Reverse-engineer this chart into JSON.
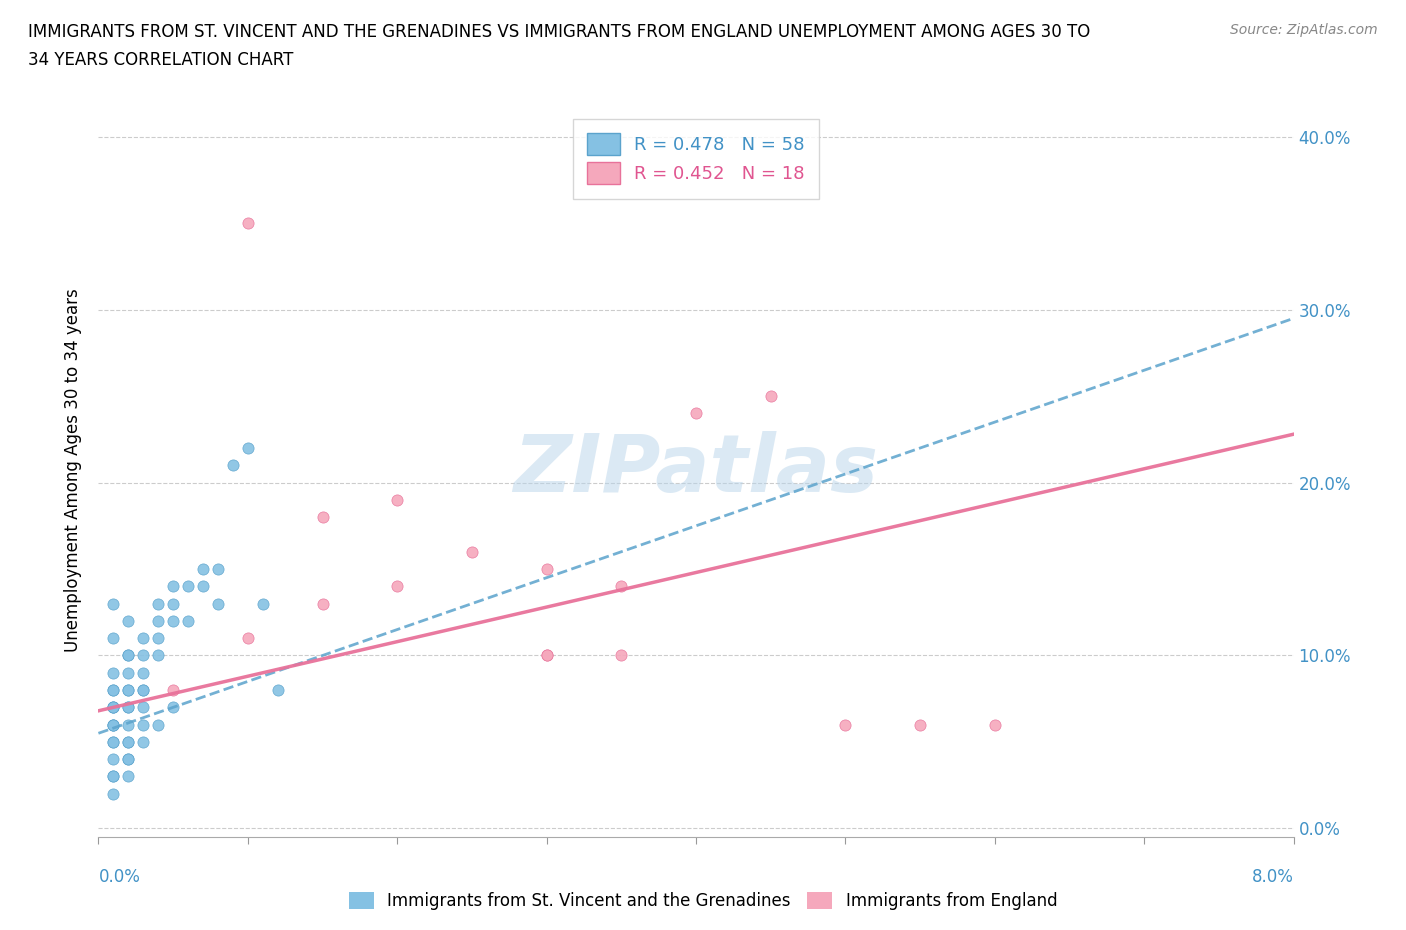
{
  "title_line1": "IMMIGRANTS FROM ST. VINCENT AND THE GRENADINES VS IMMIGRANTS FROM ENGLAND UNEMPLOYMENT AMONG AGES 30 TO",
  "title_line2": "34 YEARS CORRELATION CHART",
  "source": "Source: ZipAtlas.com",
  "ylabel": "Unemployment Among Ages 30 to 34 years",
  "xlim": [
    0.0,
    0.08
  ],
  "ylim": [
    -0.005,
    0.42
  ],
  "yticks": [
    0.0,
    0.1,
    0.2,
    0.3,
    0.4
  ],
  "ytick_labels": [
    "0.0%",
    "10.0%",
    "20.0%",
    "30.0%",
    "40.0%"
  ],
  "legend_r1": "R = 0.478",
  "legend_n1": "N = 58",
  "legend_r2": "R = 0.452",
  "legend_n2": "N = 18",
  "color_blue": "#85c1e3",
  "color_pink": "#f5a8bc",
  "color_blue_dark": "#5ba3cc",
  "color_pink_dark": "#e8729a",
  "color_blue_text": "#4292c6",
  "color_pink_text": "#e05590",
  "watermark": "ZIPatlas",
  "blue_x": [
    0.001,
    0.001,
    0.001,
    0.001,
    0.001,
    0.001,
    0.001,
    0.001,
    0.001,
    0.001,
    0.002,
    0.002,
    0.002,
    0.002,
    0.002,
    0.002,
    0.002,
    0.002,
    0.003,
    0.003,
    0.003,
    0.003,
    0.003,
    0.004,
    0.004,
    0.004,
    0.004,
    0.005,
    0.005,
    0.005,
    0.006,
    0.006,
    0.007,
    0.007,
    0.008,
    0.008,
    0.009,
    0.01,
    0.011,
    0.012,
    0.001,
    0.001,
    0.002,
    0.002,
    0.003,
    0.003,
    0.004,
    0.005,
    0.001,
    0.002,
    0.001,
    0.002,
    0.003,
    0.001,
    0.002,
    0.002,
    0.001,
    0.001
  ],
  "blue_y": [
    0.05,
    0.06,
    0.07,
    0.08,
    0.04,
    0.03,
    0.05,
    0.06,
    0.07,
    0.08,
    0.05,
    0.06,
    0.07,
    0.08,
    0.09,
    0.1,
    0.07,
    0.08,
    0.07,
    0.08,
    0.09,
    0.1,
    0.11,
    0.1,
    0.11,
    0.12,
    0.13,
    0.12,
    0.13,
    0.14,
    0.12,
    0.14,
    0.14,
    0.15,
    0.15,
    0.13,
    0.21,
    0.22,
    0.13,
    0.08,
    0.02,
    0.03,
    0.04,
    0.03,
    0.05,
    0.06,
    0.06,
    0.07,
    0.09,
    0.1,
    0.11,
    0.12,
    0.08,
    0.13,
    0.04,
    0.05,
    0.06,
    0.07
  ],
  "pink_x": [
    0.01,
    0.015,
    0.02,
    0.025,
    0.03,
    0.035,
    0.04,
    0.045,
    0.005,
    0.01,
    0.015,
    0.02,
    0.03,
    0.035,
    0.05,
    0.055,
    0.06,
    0.03
  ],
  "pink_y": [
    0.35,
    0.18,
    0.19,
    0.16,
    0.1,
    0.1,
    0.24,
    0.25,
    0.08,
    0.11,
    0.13,
    0.14,
    0.15,
    0.14,
    0.06,
    0.06,
    0.06,
    0.1
  ],
  "blue_trend_x": [
    0.0,
    0.08
  ],
  "blue_trend_y": [
    0.055,
    0.295
  ],
  "pink_trend_x": [
    0.0,
    0.08
  ],
  "pink_trend_y": [
    0.068,
    0.228
  ]
}
